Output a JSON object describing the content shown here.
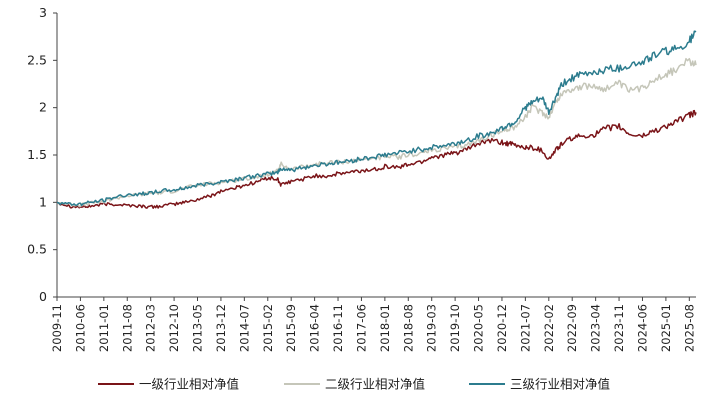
{
  "chart_data": {
    "type": "line",
    "title": "",
    "xlabel": "",
    "ylabel": "",
    "ylim": [
      0,
      3
    ],
    "yticks": [
      "0",
      "0.5",
      "1",
      "1.5",
      "2",
      "2.5",
      "3"
    ],
    "grid": false,
    "legend_position": "bottom",
    "x_tick_labels": [
      "2009-11",
      "2010-06",
      "2011-01",
      "2011-08",
      "2012-03",
      "2012-10",
      "2013-05",
      "2013-12",
      "2014-07",
      "2015-02",
      "2015-09",
      "2016-04",
      "2016-11",
      "2017-06",
      "2018-01",
      "2018-08",
      "2019-03",
      "2019-10",
      "2020-05",
      "2020-12",
      "2021-07",
      "2022-02",
      "2022-09",
      "2023-04",
      "2023-11",
      "2024-06",
      "2025-01",
      "2025-08"
    ],
    "x": [
      "2009-11",
      "2010-03",
      "2010-06",
      "2010-09",
      "2011-01",
      "2011-04",
      "2011-08",
      "2011-12",
      "2012-03",
      "2012-06",
      "2012-10",
      "2013-01",
      "2013-05",
      "2013-09",
      "2013-12",
      "2014-04",
      "2014-07",
      "2014-11",
      "2015-02",
      "2015-05",
      "2015-06",
      "2015-09",
      "2016-01",
      "2016-04",
      "2016-08",
      "2016-11",
      "2017-03",
      "2017-06",
      "2017-10",
      "2018-01",
      "2018-05",
      "2018-08",
      "2018-12",
      "2019-03",
      "2019-07",
      "2019-10",
      "2020-01",
      "2020-05",
      "2020-08",
      "2020-12",
      "2021-02",
      "2021-04",
      "2021-07",
      "2021-09",
      "2021-12",
      "2022-02",
      "2022-04",
      "2022-06",
      "2022-09",
      "2022-12",
      "2023-04",
      "2023-07",
      "2023-11",
      "2024-02",
      "2024-06",
      "2024-09",
      "2025-01",
      "2025-04",
      "2025-08",
      "2025-10"
    ],
    "series": [
      {
        "name": "一级行业相对净值",
        "color": "#7a1418",
        "values": [
          1.0,
          0.96,
          0.95,
          0.96,
          0.98,
          0.98,
          0.97,
          0.96,
          0.95,
          0.96,
          0.98,
          1.0,
          1.03,
          1.07,
          1.12,
          1.15,
          1.18,
          1.22,
          1.26,
          1.24,
          1.18,
          1.22,
          1.25,
          1.28,
          1.28,
          1.3,
          1.32,
          1.33,
          1.35,
          1.38,
          1.37,
          1.4,
          1.43,
          1.48,
          1.5,
          1.52,
          1.55,
          1.62,
          1.65,
          1.63,
          1.62,
          1.6,
          1.58,
          1.58,
          1.55,
          1.45,
          1.55,
          1.62,
          1.68,
          1.7,
          1.72,
          1.78,
          1.8,
          1.72,
          1.7,
          1.75,
          1.8,
          1.85,
          1.92,
          1.95
        ]
      },
      {
        "name": "二级行业相对净值",
        "color": "#c5c6b9",
        "values": [
          1.0,
          0.98,
          0.97,
          0.99,
          1.01,
          1.04,
          1.07,
          1.08,
          1.1,
          1.1,
          1.12,
          1.15,
          1.18,
          1.2,
          1.21,
          1.23,
          1.25,
          1.27,
          1.3,
          1.33,
          1.4,
          1.35,
          1.38,
          1.4,
          1.42,
          1.42,
          1.44,
          1.45,
          1.47,
          1.48,
          1.48,
          1.5,
          1.52,
          1.55,
          1.57,
          1.58,
          1.6,
          1.65,
          1.7,
          1.75,
          1.78,
          1.8,
          1.9,
          2.0,
          1.95,
          1.9,
          2.05,
          2.15,
          2.2,
          2.22,
          2.22,
          2.2,
          2.25,
          2.18,
          2.2,
          2.3,
          2.35,
          2.4,
          2.5,
          2.45
        ]
      },
      {
        "name": "三级行业相对净值",
        "color": "#2c7c8e",
        "values": [
          1.0,
          0.98,
          0.98,
          1.0,
          1.02,
          1.05,
          1.08,
          1.09,
          1.1,
          1.12,
          1.13,
          1.15,
          1.18,
          1.2,
          1.22,
          1.24,
          1.26,
          1.28,
          1.3,
          1.32,
          1.36,
          1.34,
          1.37,
          1.39,
          1.41,
          1.42,
          1.44,
          1.46,
          1.48,
          1.5,
          1.52,
          1.54,
          1.56,
          1.58,
          1.6,
          1.62,
          1.65,
          1.7,
          1.72,
          1.78,
          1.82,
          1.85,
          2.0,
          2.05,
          2.1,
          1.95,
          2.1,
          2.25,
          2.32,
          2.35,
          2.38,
          2.4,
          2.42,
          2.45,
          2.48,
          2.55,
          2.6,
          2.62,
          2.7,
          2.8
        ]
      }
    ]
  }
}
